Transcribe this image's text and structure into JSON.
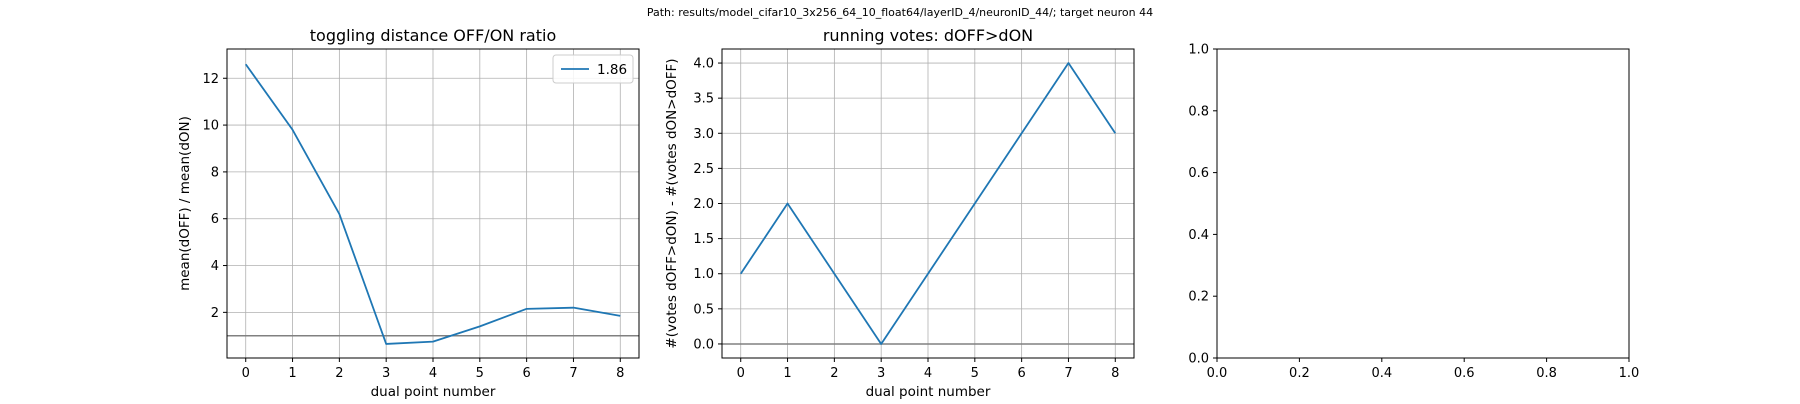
{
  "figure": {
    "suptitle": "Path: results/model_cifar10_3x256_64_10_float64/layerID_4/neuronID_44/; target neuron 44"
  },
  "chart_data": [
    {
      "type": "line",
      "title": "toggling distance OFF/ON ratio",
      "xlabel": "dual point number",
      "ylabel": "mean(dOFF) / mean(dON)",
      "xlim": [
        -0.4,
        8.4
      ],
      "ylim": [
        0.05,
        13.25
      ],
      "xticks": [
        0,
        1,
        2,
        3,
        4,
        5,
        6,
        7,
        8
      ],
      "yticks": [
        2,
        4,
        6,
        8,
        10,
        12
      ],
      "grid": true,
      "legend": {
        "placement": "upper right",
        "entries": [
          "1.86"
        ]
      },
      "hline": {
        "y": 1.0,
        "color": "#808080"
      },
      "series": [
        {
          "name": "1.86",
          "color": "#1f77b4",
          "x": [
            0,
            1,
            2,
            3,
            4,
            5,
            6,
            7,
            8
          ],
          "y": [
            12.6,
            9.8,
            6.2,
            0.65,
            0.75,
            1.4,
            2.15,
            2.2,
            1.85
          ]
        }
      ]
    },
    {
      "type": "line",
      "title": "running votes: dOFF>dON",
      "xlabel": "dual point number",
      "ylabel": "#(votes dOFF>dON) - #(votes dON>dOFF)",
      "xlim": [
        -0.4,
        8.4
      ],
      "ylim": [
        -0.2,
        4.2
      ],
      "xticks": [
        0,
        1,
        2,
        3,
        4,
        5,
        6,
        7,
        8
      ],
      "yticks": [
        0.0,
        0.5,
        1.0,
        1.5,
        2.0,
        2.5,
        3.0,
        3.5,
        4.0
      ],
      "ytick_labels": [
        "0.0",
        "0.5",
        "1.0",
        "1.5",
        "2.0",
        "2.5",
        "3.0",
        "3.5",
        "4.0"
      ],
      "grid": true,
      "hline": {
        "y": 0.0,
        "color": "#808080"
      },
      "series": [
        {
          "color": "#1f77b4",
          "x": [
            0,
            1,
            2,
            3,
            4,
            5,
            6,
            7,
            8
          ],
          "y": [
            1,
            2,
            1,
            0,
            1,
            2,
            3,
            4,
            3
          ]
        }
      ]
    },
    {
      "type": "line",
      "title": "",
      "xlim": [
        0,
        1
      ],
      "ylim": [
        0,
        1
      ],
      "xticks": [
        0.0,
        0.2,
        0.4,
        0.6,
        0.8,
        1.0
      ],
      "yticks": [
        0.0,
        0.2,
        0.4,
        0.6,
        0.8,
        1.0
      ],
      "xtick_labels": [
        "0.0",
        "0.2",
        "0.4",
        "0.6",
        "0.8",
        "1.0"
      ],
      "ytick_labels": [
        "0.0",
        "0.2",
        "0.4",
        "0.6",
        "0.8",
        "1.0"
      ],
      "grid": false,
      "series": []
    }
  ]
}
